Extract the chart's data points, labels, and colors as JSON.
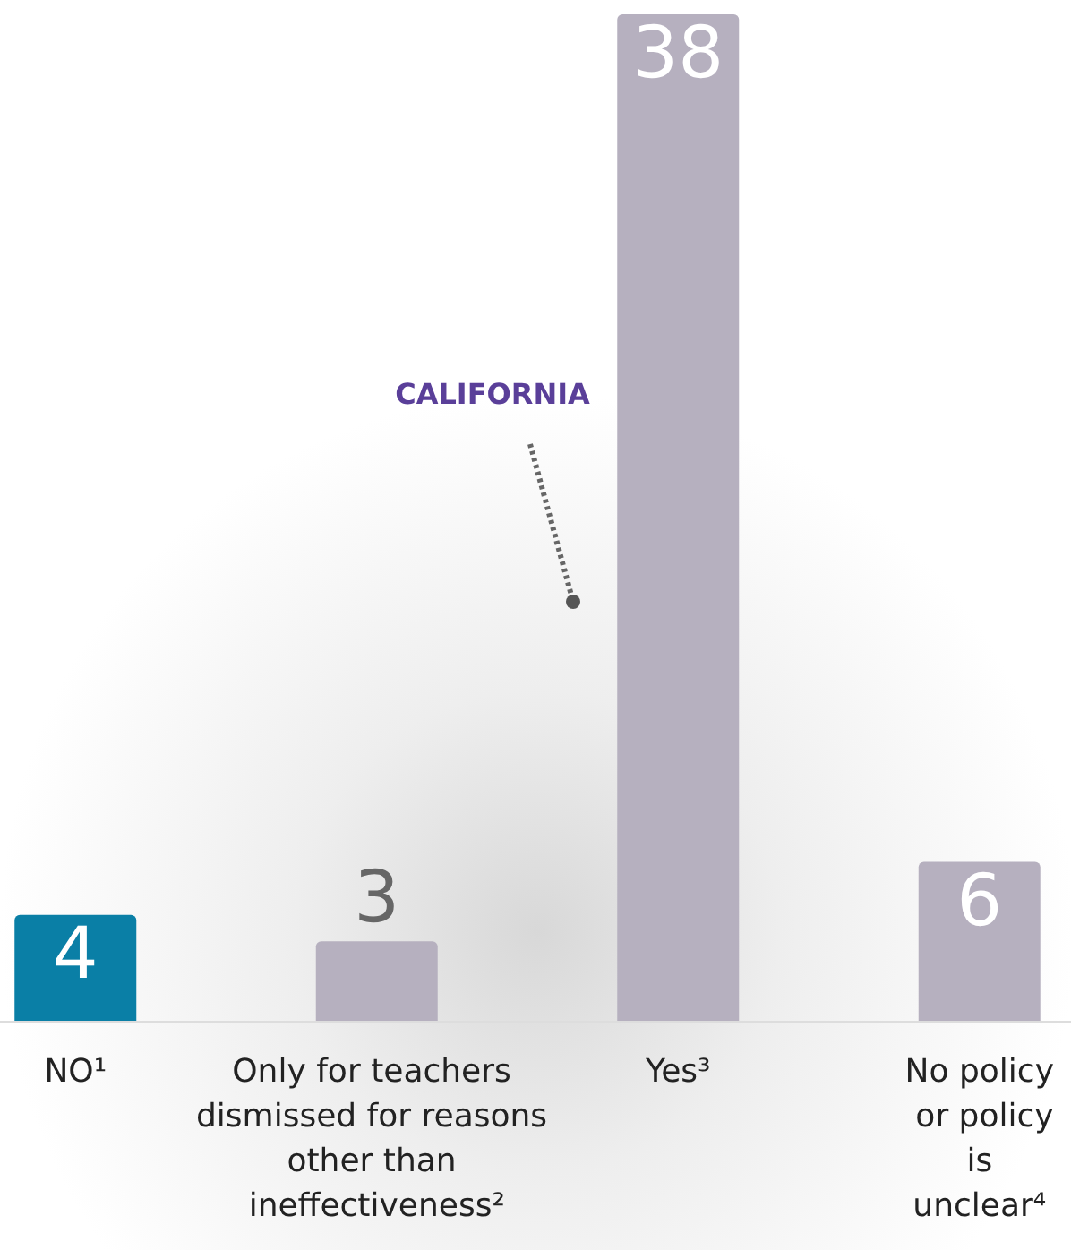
{
  "chart_data": {
    "type": "bar",
    "categories": [
      "NO¹",
      "Only for teachers dismissed for reasons other than ineffectiveness²",
      "Yes³",
      "No policy or policy is unclear⁴"
    ],
    "values": [
      4,
      3,
      38,
      6
    ],
    "colors": [
      "#0a7fa6",
      "#b6b0bf",
      "#b6b0bf",
      "#b6b0bf"
    ],
    "data_labels": true,
    "annotations": [
      "CALIFORNIA"
    ]
  }
}
